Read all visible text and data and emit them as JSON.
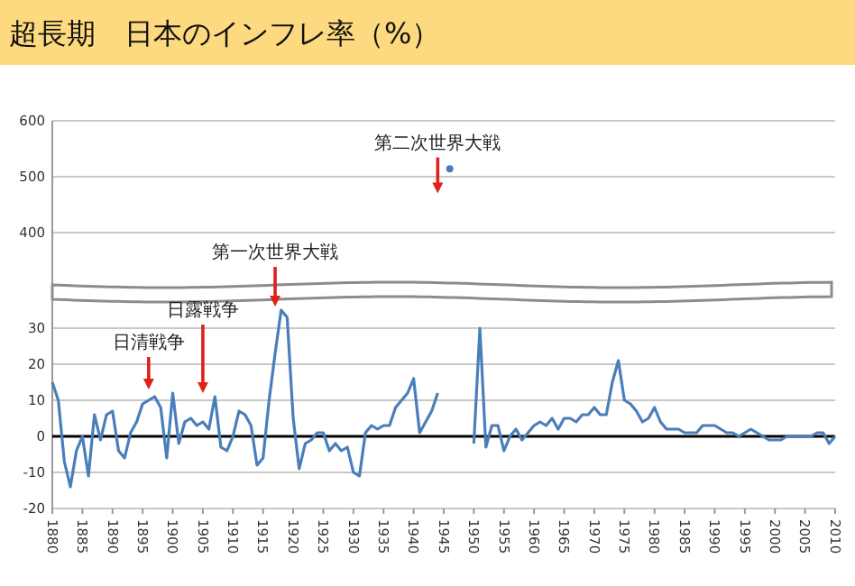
{
  "chart_data": [
    {
      "type": "line",
      "title": "超長期　日本のインフレ率（%）",
      "xlim": [
        1880,
        2010
      ],
      "ylim": [
        300,
        600
      ],
      "yticks": [
        400,
        500,
        600
      ],
      "grid": "y",
      "tick_labels": "y",
      "marker": "circle",
      "series": [
        {
          "color": "#4a7ebb",
          "x": [
            1946
          ],
          "values": [
            514
          ]
        }
      ],
      "annotations": [
        "第二次世界大戦"
      ]
    },
    {
      "type": "line",
      "xlim": [
        1880,
        2010
      ],
      "ylim": [
        -20,
        38
      ],
      "yticks": [
        -20,
        -10,
        0,
        10,
        20,
        30
      ],
      "xticks": [
        1880,
        1885,
        1890,
        1895,
        1900,
        1905,
        1910,
        1915,
        1920,
        1925,
        1930,
        1935,
        1940,
        1945,
        1950,
        1955,
        1960,
        1965,
        1970,
        1975,
        1980,
        1985,
        1990,
        1995,
        2000,
        2005,
        2010
      ],
      "grid": "y",
      "ref_lines": [
        {
          "axis": "y",
          "value": 0,
          "color": "#000000"
        }
      ],
      "series": [
        {
          "color": "#4a7ebb",
          "x": [
            1880,
            1881,
            1882,
            1883,
            1884,
            1885,
            1886,
            1887,
            1888,
            1889,
            1890,
            1891,
            1892,
            1893,
            1894,
            1895,
            1896,
            1897,
            1898,
            1899,
            1900,
            1901,
            1902,
            1903,
            1904,
            1905,
            1906,
            1907,
            1908,
            1909,
            1910,
            1911,
            1912,
            1913,
            1914,
            1915,
            1916,
            1917,
            1918,
            1919,
            1920,
            1921,
            1922,
            1923,
            1924,
            1925,
            1926,
            1927,
            1928,
            1929,
            1930,
            1931,
            1932,
            1933,
            1934,
            1935,
            1936,
            1937,
            1938,
            1939,
            1940,
            1941,
            1942,
            1943,
            1944,
            1945,
            1946,
            1947,
            1948,
            1949,
            1950,
            1951,
            1952,
            1953,
            1954,
            1955,
            1956,
            1957,
            1958,
            1959,
            1960,
            1961,
            1962,
            1963,
            1964,
            1965,
            1966,
            1967,
            1968,
            1969,
            1970,
            1971,
            1972,
            1973,
            1974,
            1975,
            1976,
            1977,
            1978,
            1979,
            1980,
            1981,
            1982,
            1983,
            1984,
            1985,
            1986,
            1987,
            1988,
            1989,
            1990,
            1991,
            1992,
            1993,
            1994,
            1995,
            1996,
            1997,
            1998,
            1999,
            2000,
            2001,
            2002,
            2003,
            2004,
            2005,
            2006,
            2007,
            2008,
            2009,
            2010
          ],
          "values": [
            15,
            10,
            -7,
            -14,
            -4,
            0,
            -11,
            6,
            -1,
            6,
            7,
            -4,
            -6,
            1,
            4,
            9,
            10,
            11,
            8,
            -6,
            12,
            -2,
            4,
            5,
            3,
            4,
            2,
            11,
            -3,
            -4,
            0,
            7,
            6,
            3,
            -8,
            -6,
            10,
            23,
            35,
            33,
            5,
            -9,
            -2,
            -1,
            1,
            1,
            -4,
            -2,
            -4,
            -3,
            -10,
            -11,
            1,
            3,
            2,
            3,
            3,
            8,
            10,
            12,
            16,
            1,
            4,
            7,
            12,
            null,
            null,
            null,
            null,
            null,
            -2,
            30,
            -3,
            3,
            3,
            -4,
            0,
            2,
            -1,
            1,
            3,
            4,
            3,
            5,
            2,
            5,
            5,
            4,
            6,
            6,
            8,
            6,
            6,
            15,
            21,
            10,
            9,
            7,
            4,
            5,
            8,
            4,
            2,
            2,
            2,
            1,
            1,
            1,
            3,
            3,
            3,
            2,
            1,
            1,
            0,
            1,
            2,
            1,
            0,
            -1,
            -1,
            -1,
            0,
            0,
            0,
            0,
            0,
            1,
            1,
            -2,
            0
          ]
        }
      ],
      "annotations": [
        {
          "text": "日清戦争",
          "x": 1896,
          "y": 13
        },
        "日露戦争",
        {
          "text": "第一次世界大戦",
          "x": 1917,
          "y": 36
        }
      ]
    }
  ]
}
